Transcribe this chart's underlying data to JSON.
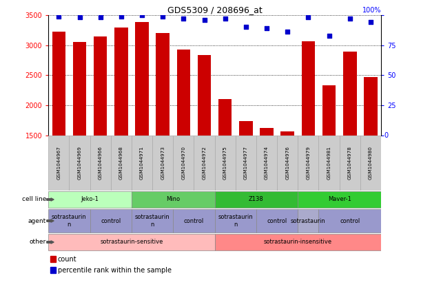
{
  "title": "GDS5309 / 208696_at",
  "samples": [
    "GSM1044967",
    "GSM1044969",
    "GSM1044966",
    "GSM1044968",
    "GSM1044971",
    "GSM1044973",
    "GSM1044970",
    "GSM1044972",
    "GSM1044975",
    "GSM1044977",
    "GSM1044974",
    "GSM1044976",
    "GSM1044979",
    "GSM1044981",
    "GSM1044978",
    "GSM1044980"
  ],
  "counts": [
    3220,
    3050,
    3140,
    3290,
    3380,
    3200,
    2930,
    2840,
    2110,
    1740,
    1620,
    1570,
    3060,
    2330,
    2890,
    2470
  ],
  "percentile": [
    99,
    98,
    98,
    99,
    100,
    99,
    97,
    96,
    97,
    90,
    89,
    86,
    98,
    83,
    97,
    94
  ],
  "ylim_left": [
    1500,
    3500
  ],
  "ylim_right": [
    0,
    100
  ],
  "yticks_left": [
    1500,
    2000,
    2500,
    3000,
    3500
  ],
  "yticks_right": [
    0,
    25,
    50,
    75,
    100
  ],
  "bar_color": "#cc0000",
  "dot_color": "#0000cc",
  "cell_lines": [
    {
      "label": "Jeko-1",
      "start": 0,
      "end": 4,
      "color": "#bbffbb"
    },
    {
      "label": "Mino",
      "start": 4,
      "end": 8,
      "color": "#66cc66"
    },
    {
      "label": "Z138",
      "start": 8,
      "end": 12,
      "color": "#33bb33"
    },
    {
      "label": "Maver-1",
      "start": 12,
      "end": 16,
      "color": "#33cc33"
    }
  ],
  "agent_groups": [
    {
      "label": "sotrastaurin\nn",
      "start": 0,
      "end": 2,
      "color": "#9999dd"
    },
    {
      "label": "control",
      "start": 2,
      "end": 4,
      "color": "#aaaadd"
    },
    {
      "label": "sotrastaurin\nn",
      "start": 4,
      "end": 6,
      "color": "#9999dd"
    },
    {
      "label": "control",
      "start": 6,
      "end": 8,
      "color": "#aaaadd"
    },
    {
      "label": "sotrastaurin\nn",
      "start": 8,
      "end": 10,
      "color": "#9999dd"
    },
    {
      "label": "control",
      "start": 10,
      "end": 12,
      "color": "#aaaadd"
    },
    {
      "label": "sotrastaurin",
      "start": 12,
      "end": 13,
      "color": "#bbbbee"
    },
    {
      "label": "control",
      "start": 13,
      "end": 16,
      "color": "#aaaadd"
    }
  ],
  "other_groups": [
    {
      "label": "sotrastaurin-sensitive",
      "start": 0,
      "end": 8,
      "color": "#ffbbbb"
    },
    {
      "label": "sotrastaurin-insensitive",
      "start": 8,
      "end": 16,
      "color": "#ff8888"
    }
  ],
  "row_labels": [
    "cell line",
    "agent",
    "other"
  ],
  "legend_items": [
    {
      "color": "#cc0000",
      "label": "count"
    },
    {
      "color": "#0000cc",
      "label": "percentile rank within the sample"
    }
  ]
}
